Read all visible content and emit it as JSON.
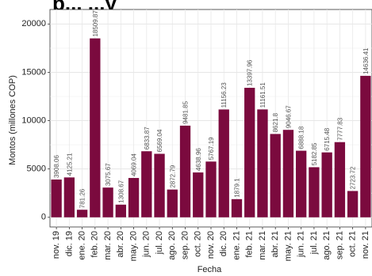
{
  "chart_data": {
    "type": "bar",
    "title": "p... ...y",
    "xlabel": "Fecha",
    "ylabel": "Montos (millones COP)",
    "ylim": [
      -1000,
      21500
    ],
    "yticks": [
      0,
      5000,
      10000,
      15000,
      20000
    ],
    "grid": true,
    "legend": "none",
    "bar_color": "#7b0a3e",
    "categories": [
      "nov. 19",
      "dic. 19",
      "ene. 20",
      "feb. 20",
      "mar. 20",
      "abr. 20",
      "may. 20",
      "jun. 20",
      "jul. 20",
      "ago. 20",
      "sep. 20",
      "oct. 20",
      "nov. 20",
      "dic. 20",
      "ene. 21",
      "feb. 21",
      "mar. 21",
      "abr. 21",
      "may. 21",
      "jun. 21",
      "jul. 21",
      "ago. 21",
      "sep. 21",
      "oct. 21",
      "nov. 21"
    ],
    "values": [
      3908.06,
      4125.21,
      781.26,
      18509.87,
      3075.67,
      1308.67,
      4069.04,
      6833.87,
      6569.04,
      2872.79,
      9481.85,
      4638.96,
      5767.19,
      11156.23,
      1879.1,
      13397.96,
      11161.51,
      8621.8,
      9046.67,
      6888.18,
      5182.85,
      6715.48,
      7777.83,
      2723.72,
      14636.41
    ],
    "data_labels": [
      "3908.06",
      "4125.21",
      "781.26",
      "18509.87",
      "3075.67",
      "1308.67",
      "4069.04",
      "6833.87",
      "6569.04",
      "2872.79",
      "9481.85",
      "4638.96",
      "5767.19",
      "11156.23",
      "1879.1",
      "13397.96",
      "11161.51",
      "8621.8",
      "9046.67",
      "6888.18",
      "5182.85",
      "6715.48",
      "7777.83",
      "2723.72",
      "14636.41"
    ]
  }
}
